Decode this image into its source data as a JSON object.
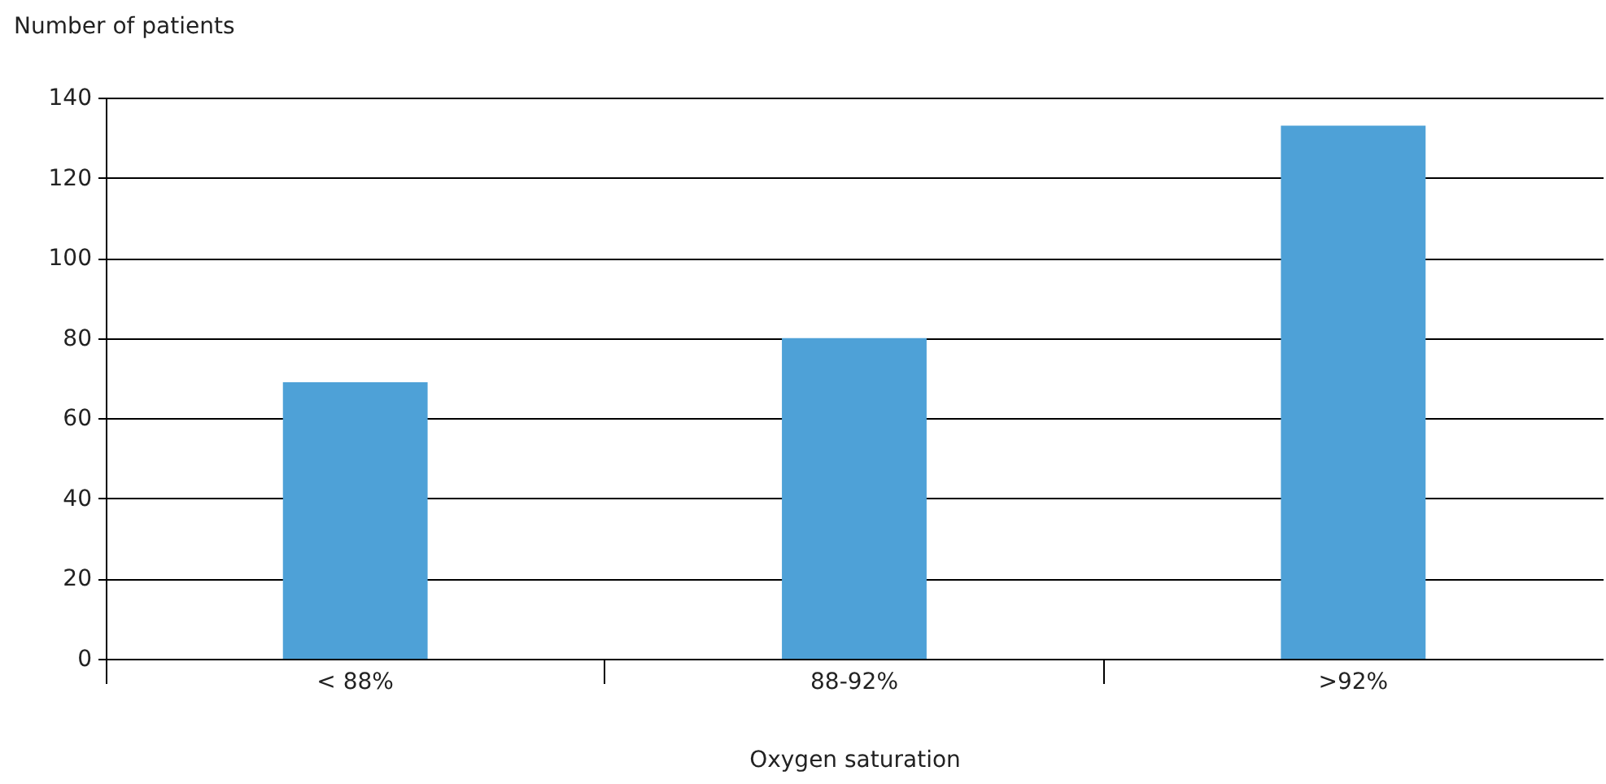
{
  "chart_data": {
    "type": "bar",
    "xlabel": "Oxygen saturation",
    "ylabel": "Number of patients",
    "categories": [
      "< 88%",
      "88-92%",
      ">92%"
    ],
    "values": [
      69,
      80,
      133
    ],
    "color": "#4ea1d7",
    "ylim": [
      0,
      140
    ],
    "yticks": [
      0,
      20,
      40,
      60,
      80,
      100,
      120,
      140
    ],
    "grid": "y"
  }
}
